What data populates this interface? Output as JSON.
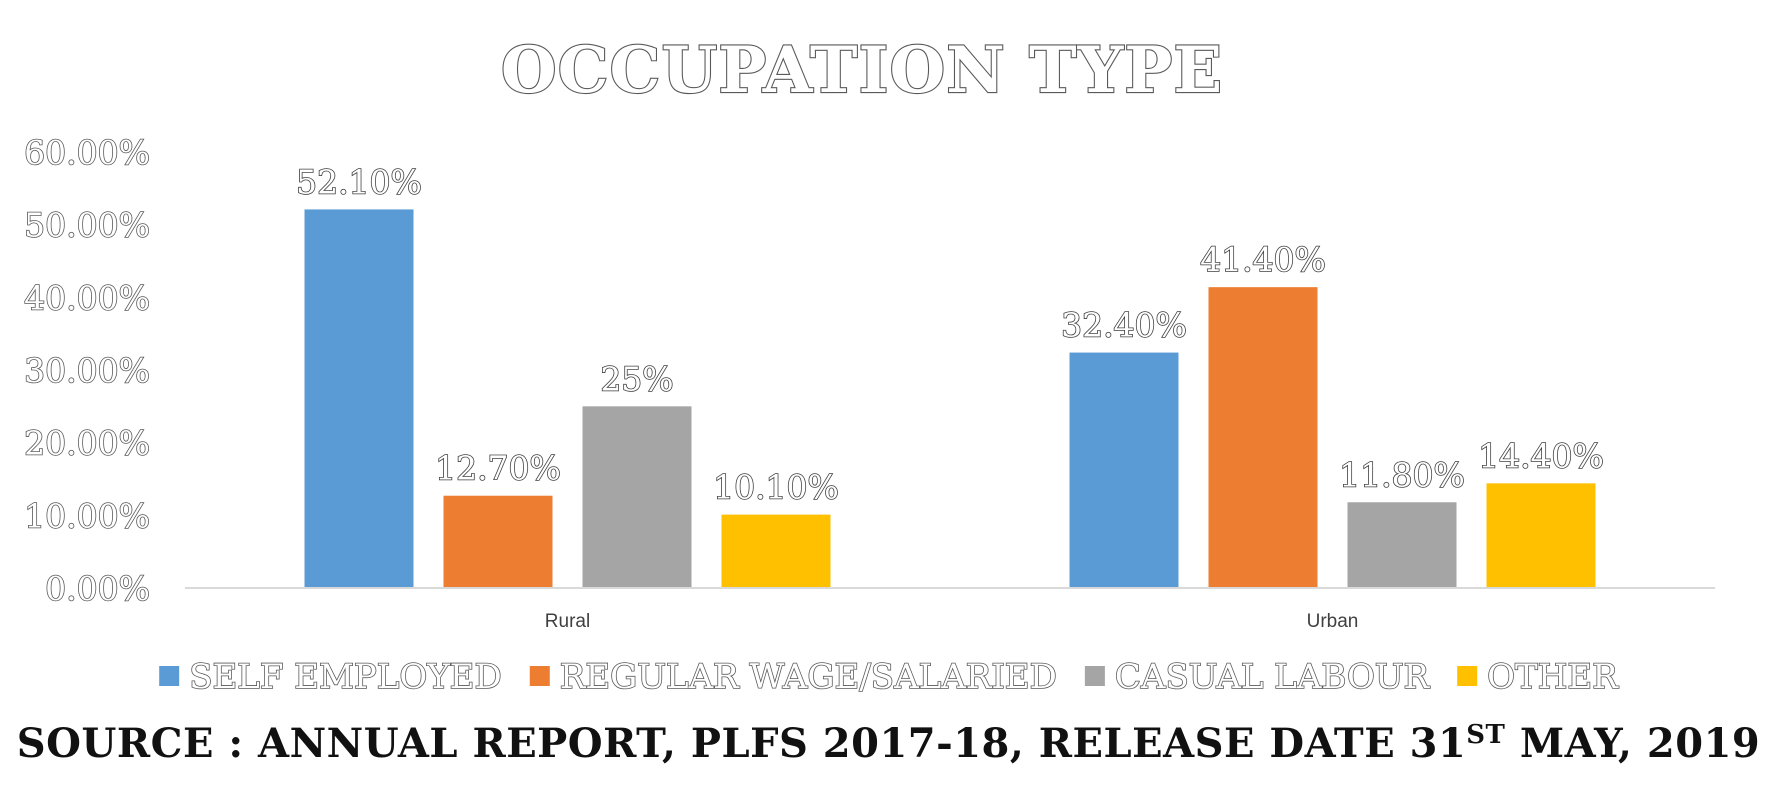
{
  "colors": {
    "series": [
      "#5B9BD5",
      "#ED7D31",
      "#A5A5A5",
      "#FFC000"
    ],
    "axis_line": "#D9D9D9"
  },
  "chart_data": {
    "type": "bar",
    "title": "OCCUPATION TYPE",
    "categories": [
      "Rural",
      "Urban"
    ],
    "series": [
      {
        "name": "SELF EMPLOYED",
        "values": [
          52.1,
          32.4
        ],
        "labels": [
          "52.10%",
          "32.40%"
        ]
      },
      {
        "name": "REGULAR WAGE/SALARIED",
        "values": [
          12.7,
          41.4
        ],
        "labels": [
          "12.70%",
          "41.40%"
        ]
      },
      {
        "name": "CASUAL LABOUR",
        "values": [
          25,
          11.8
        ],
        "labels": [
          "25%",
          "11.80%"
        ]
      },
      {
        "name": "OTHER",
        "values": [
          10.1,
          14.4
        ],
        "labels": [
          "10.10%",
          "14.40%"
        ]
      }
    ],
    "ylim": [
      0,
      60
    ],
    "yticks": [
      0,
      10,
      20,
      30,
      40,
      50,
      60
    ],
    "ytick_labels": [
      "0.00%",
      "10.00%",
      "20.00%",
      "30.00%",
      "40.00%",
      "50.00%",
      "60.00%"
    ],
    "grid": false,
    "legend_position": "bottom"
  },
  "source": {
    "prefix": "SOURCE : ANNUAL REPORT, PLFS 2017-18, RELEASE DATE 31",
    "superscript": "ST",
    "suffix": " MAY, 2019"
  }
}
